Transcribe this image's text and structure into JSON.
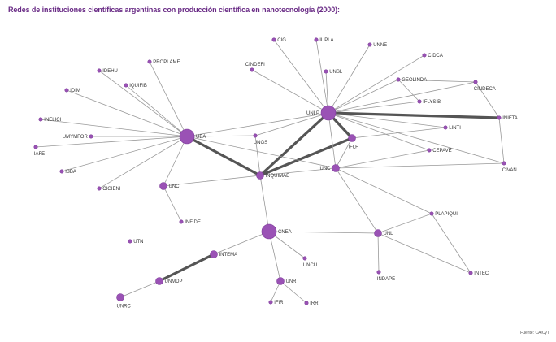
{
  "title": "Redes de instituciones científicas argentinas con producción científica en nanotecnología (2000):",
  "source": "Fuente: CAICyT",
  "colors": {
    "node": "#9a52b5",
    "node_stroke": "#7d3a99",
    "edge": "#999999",
    "heavy_edge": "#555555",
    "title": "#6a2c86"
  },
  "nodes": [
    {
      "id": "UBA",
      "label": "UBA",
      "size": "large"
    },
    {
      "id": "UNLP",
      "label": "UNLP",
      "size": "large"
    },
    {
      "id": "CNEA",
      "label": "CNEA",
      "size": "large"
    },
    {
      "id": "INQUIMAE",
      "label": "INQUIMAE",
      "size": "medium"
    },
    {
      "id": "UNC",
      "label": "UNC",
      "size": "medium"
    },
    {
      "id": "IFLP",
      "label": "IFLP",
      "size": "medium"
    },
    {
      "id": "UNSL",
      "label": "UNSL",
      "size": "small"
    },
    {
      "id": "UNL",
      "label": "UNL",
      "size": "medium"
    },
    {
      "id": "UNMDP",
      "label": "UNMDP",
      "size": "medium"
    },
    {
      "id": "INTEMA",
      "label": "INTEMA",
      "size": "medium"
    },
    {
      "id": "UNRC",
      "label": "UNRC",
      "size": "medium"
    },
    {
      "id": "UNR",
      "label": "UNR",
      "size": "medium"
    },
    {
      "id": "IFIR",
      "label": "IFIR",
      "size": "small"
    },
    {
      "id": "IRR",
      "label": "IRR",
      "size": "small"
    },
    {
      "id": "UNCU",
      "label": "UNCU",
      "size": "small"
    },
    {
      "id": "INDAPE",
      "label": "INDAPE",
      "size": "small"
    },
    {
      "id": "INTEC",
      "label": "INTEC",
      "size": "small"
    },
    {
      "id": "PLAPIQUI",
      "label": "PLAPIQUI",
      "size": "small"
    },
    {
      "id": "CEPAVE",
      "label": "CEPAVE",
      "size": "small"
    },
    {
      "id": "CIVAN",
      "label": "CIVAN",
      "size": "small"
    },
    {
      "id": "INIFTA",
      "label": "INIFTA",
      "size": "small"
    },
    {
      "id": "CINDECA",
      "label": "CINDECA",
      "size": "small"
    },
    {
      "id": "GEOLINDA",
      "label": "GEOLINDA",
      "size": "small"
    },
    {
      "id": "IFLYSIB",
      "label": "IFLYSIB",
      "size": "small"
    },
    {
      "id": "LINTI",
      "label": "LINTI",
      "size": "small"
    },
    {
      "id": "CIDCA",
      "label": "CIDCA",
      "size": "small"
    },
    {
      "id": "UNNE",
      "label": "UNNE",
      "size": "small"
    },
    {
      "id": "IUPLA",
      "label": "IUPLA",
      "size": "small"
    },
    {
      "id": "CIG",
      "label": "CIG",
      "size": "small"
    },
    {
      "id": "CINDEFI",
      "label": "CINDEFI",
      "size": "small"
    },
    {
      "id": "UNGS",
      "label": "UNGS",
      "size": "small"
    },
    {
      "id": "IDEHU",
      "label": "IDEHU",
      "size": "small"
    },
    {
      "id": "PROPLAME",
      "label": "PROPLAME",
      "size": "small"
    },
    {
      "id": "IQUIFIB",
      "label": "IQUIFIB",
      "size": "small"
    },
    {
      "id": "IDIM",
      "label": "IDIM",
      "size": "small"
    },
    {
      "id": "INELICI",
      "label": "INELICI",
      "size": "small"
    },
    {
      "id": "UMYMFOR",
      "label": "UMYMFOR",
      "size": "small"
    },
    {
      "id": "IAFE",
      "label": "IAFE",
      "size": "small"
    },
    {
      "id": "IBBA",
      "label": "IBBA",
      "size": "small"
    },
    {
      "id": "CIGIENI",
      "label": "CIGIENI",
      "size": "small"
    },
    {
      "id": "INFIDE",
      "label": "INFIDE",
      "size": "small"
    },
    {
      "id": "UTN",
      "label": "UTN",
      "size": "small"
    }
  ],
  "edges": [
    {
      "from": "UBA",
      "to": "INQUIMAE",
      "weight": "heavy"
    },
    {
      "from": "UNLP",
      "to": "INQUIMAE",
      "weight": "heavy"
    },
    {
      "from": "UNLP",
      "to": "INIFTA",
      "weight": "heavy"
    },
    {
      "from": "UNLP",
      "to": "IFLP",
      "weight": "heavy"
    },
    {
      "from": "INQUIMAE",
      "to": "IFLP",
      "weight": "heavy"
    },
    {
      "from": "INTEMA",
      "to": "UNMDP",
      "weight": "heavy"
    },
    {
      "from": "UBA",
      "to": "IDEHU",
      "weight": "light"
    },
    {
      "from": "UBA",
      "to": "PROPLAME",
      "weight": "light"
    },
    {
      "from": "UBA",
      "to": "IQUIFIB",
      "weight": "light"
    },
    {
      "from": "UBA",
      "to": "IDIM",
      "weight": "light"
    },
    {
      "from": "UBA",
      "to": "INELICI",
      "weight": "light"
    },
    {
      "from": "UBA",
      "to": "UMYMFOR",
      "weight": "light"
    },
    {
      "from": "UBA",
      "to": "IAFE",
      "weight": "light"
    },
    {
      "from": "UBA",
      "to": "IBBA",
      "weight": "light"
    },
    {
      "from": "UBA",
      "to": "CIGIENI",
      "weight": "light"
    },
    {
      "from": "UBA",
      "to": "UNC",
      "weight": "light"
    },
    {
      "from": "UBA",
      "to": "UNLP",
      "weight": "light"
    },
    {
      "from": "UBA",
      "to": "UNGS",
      "weight": "light"
    },
    {
      "from": "UBA",
      "to": "UNC2",
      "weight": "light"
    },
    {
      "from": "UNC",
      "to": "INFIDE",
      "weight": "light"
    },
    {
      "from": "UNC",
      "to": "INQUIMAE",
      "weight": "light"
    },
    {
      "from": "UNLP",
      "to": "CIG",
      "weight": "light"
    },
    {
      "from": "UNLP",
      "to": "IUPLA",
      "weight": "light"
    },
    {
      "from": "UNLP",
      "to": "UNNE",
      "weight": "light"
    },
    {
      "from": "UNLP",
      "to": "CIDCA",
      "weight": "light"
    },
    {
      "from": "UNLP",
      "to": "GEOLINDA",
      "weight": "light"
    },
    {
      "from": "UNLP",
      "to": "CINDECA",
      "weight": "light"
    },
    {
      "from": "UNLP",
      "to": "IFLYSIB",
      "weight": "light"
    },
    {
      "from": "UNLP",
      "to": "LINTI",
      "weight": "light"
    },
    {
      "from": "UNLP",
      "to": "CINDEFI",
      "weight": "light"
    },
    {
      "from": "UNLP",
      "to": "UNSL",
      "weight": "light"
    },
    {
      "from": "UNLP",
      "to": "UNC2",
      "weight": "light"
    },
    {
      "from": "UNLP",
      "to": "CEPAVE",
      "weight": "light"
    },
    {
      "from": "UNLP",
      "to": "CIVAN",
      "weight": "light"
    },
    {
      "from": "UNLP",
      "to": "UNGS",
      "weight": "light"
    },
    {
      "from": "GEOLINDA",
      "to": "CINDECA",
      "weight": "light"
    },
    {
      "from": "GEOLINDA",
      "to": "IFLYSIB",
      "weight": "light"
    },
    {
      "from": "CINDECA",
      "to": "INIFTA",
      "weight": "light"
    },
    {
      "from": "INIFTA",
      "to": "CIVAN",
      "weight": "light"
    },
    {
      "from": "IFLP",
      "to": "LINTI",
      "weight": "light"
    },
    {
      "from": "IFLP",
      "to": "UNC2",
      "weight": "light"
    },
    {
      "from": "UNC2",
      "to": "CIVAN",
      "weight": "light"
    },
    {
      "from": "UNC2",
      "to": "CEPAVE",
      "weight": "light"
    },
    {
      "from": "UNC2",
      "to": "UNL",
      "weight": "light"
    },
    {
      "from": "UNC2",
      "to": "PLAPIQUI",
      "weight": "light"
    },
    {
      "from": "UNC2",
      "to": "INQUIMAE",
      "weight": "light"
    },
    {
      "from": "INQUIMAE",
      "to": "CNEA",
      "weight": "light"
    },
    {
      "from": "INQUIMAE",
      "to": "UNGS",
      "weight": "light"
    },
    {
      "from": "CNEA",
      "to": "INTEMA",
      "weight": "light"
    },
    {
      "from": "CNEA",
      "to": "UNCU",
      "weight": "light"
    },
    {
      "from": "CNEA",
      "to": "UNR",
      "weight": "light"
    },
    {
      "from": "CNEA",
      "to": "UNL",
      "weight": "light"
    },
    {
      "from": "UNR",
      "to": "IFIR",
      "weight": "light"
    },
    {
      "from": "UNR",
      "to": "IRR",
      "weight": "light"
    },
    {
      "from": "UNMDP",
      "to": "UNRC",
      "weight": "light"
    },
    {
      "from": "UNL",
      "to": "PLAPIQUI",
      "weight": "light"
    },
    {
      "from": "UNL",
      "to": "INDAPE",
      "weight": "light"
    },
    {
      "from": "UNL",
      "to": "INTEC",
      "weight": "light"
    },
    {
      "from": "PLAPIQUI",
      "to": "INTEC",
      "weight": "light"
    }
  ]
}
